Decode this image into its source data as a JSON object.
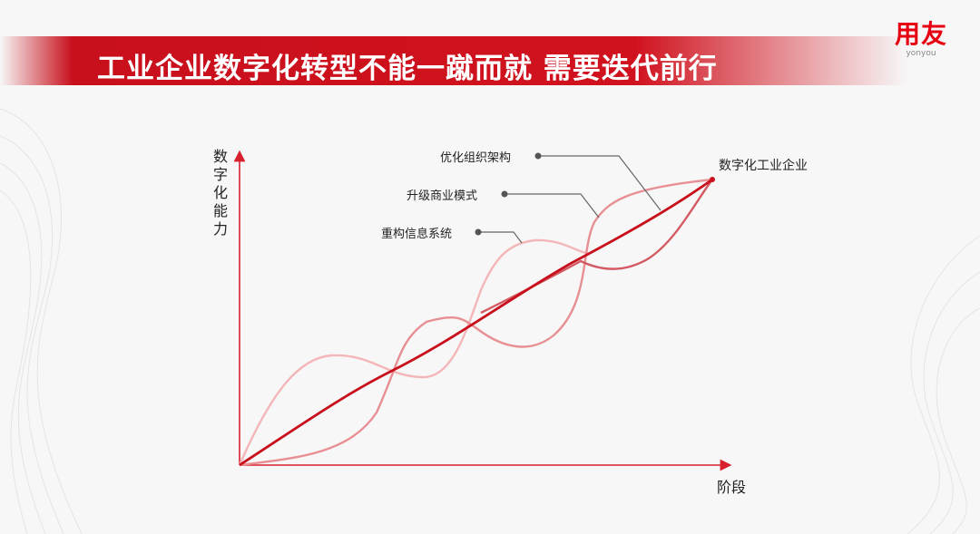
{
  "header": {
    "title": "工业企业数字化转型不能一蹴而就  需要迭代前行",
    "logo_cn": "用友",
    "logo_en": "yonyou"
  },
  "diagram": {
    "y_axis_label": [
      "数",
      "字",
      "化",
      "能",
      "力"
    ],
    "x_axis_label": "阶段",
    "end_label": "数字化工业企业",
    "curve_labels": [
      "优化组织架构",
      "升级商业模式",
      "重构信息系统"
    ],
    "colors": {
      "axis": "#d8202c",
      "main_curve": "#c8101c",
      "curve_light": "#f4b6b8",
      "curve_mid": "#e88f94",
      "curve_dark": "#d35a62",
      "leader": "#555555",
      "accent": "#e60012"
    }
  }
}
